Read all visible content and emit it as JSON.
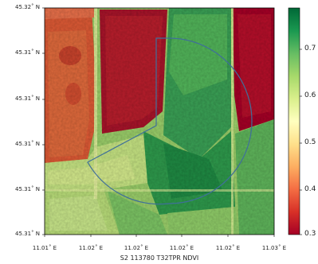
{
  "figure": {
    "xlabel": "S2 113780 T32TPR NDVI",
    "y_ticks": [
      "45.32˚ N",
      "45.31˚ N",
      "45.31˚ N",
      "45.31˚ N",
      "45.31˚ N",
      "45.31˚ N"
    ],
    "x_ticks": [
      "11.01˚ E",
      "11.02˚ E",
      "11.02˚ E",
      "11.02˚ E",
      "11.02˚ E",
      "11.03˚ E"
    ],
    "colorbar": {
      "ticks": [
        "0.7",
        "0.6",
        "0.5",
        "0.4",
        "0.3"
      ],
      "colors": [
        "#a50026",
        "#d73027",
        "#f46d43",
        "#fdae61",
        "#fee08b",
        "#ffffbf",
        "#d9ef8b",
        "#a6d96a",
        "#66bd63",
        "#1a9850",
        "#006837"
      ]
    },
    "colors": {
      "outline": "#3f6f9a",
      "frame": "#000000"
    }
  }
}
